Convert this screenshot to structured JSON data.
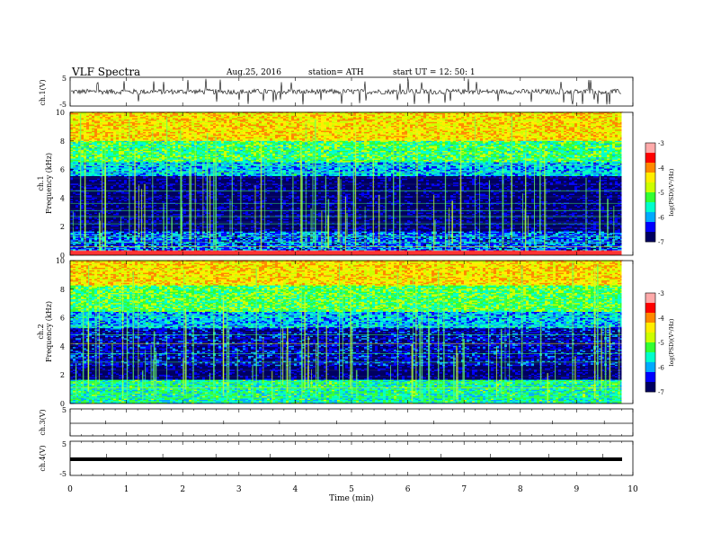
{
  "header": {
    "title": "VLF  Spectra",
    "date": "Aug.25, 2016",
    "station": "station= ATH",
    "start": "start  UT  =    12: 50: 1"
  },
  "chart_data": [
    {
      "type": "line",
      "panel": "ch1-waveform",
      "ylabel": "ch.1(V)",
      "ylim": [
        -5,
        5
      ],
      "yticks": [
        "5",
        "-5"
      ],
      "baseline": 0,
      "x_range_min": [
        0,
        9.8
      ],
      "description_values": {
        "typical_amplitude_V": 1.5,
        "spike_amplitude_V": 4.5
      }
    },
    {
      "type": "heatmap",
      "panel": "ch1-spectrogram",
      "ylabel": "ch.1",
      "ylabel2": "Frequency  (kHz)",
      "ylim": [
        0,
        10
      ],
      "yticks": [
        "0",
        "2",
        "4",
        "6",
        "8",
        "10"
      ],
      "xlim": [
        0,
        9.8
      ],
      "colorbar": {
        "label": "log(PSD)(V²/Hz)",
        "ticks": [
          "-3",
          "-4",
          "-5",
          "-6",
          "-7"
        ],
        "range": [
          -7,
          -3
        ]
      },
      "bands_kHz_logPSD": [
        {
          "from": 0,
          "to": 0.3,
          "value": -3.2
        },
        {
          "from": 0.3,
          "to": 1.6,
          "value": -6.2
        },
        {
          "from": 1.6,
          "to": 5.5,
          "value": -6.9
        },
        {
          "from": 5.5,
          "to": 6.5,
          "value": -5.9
        },
        {
          "from": 6.5,
          "to": 8.0,
          "value": -5.3
        },
        {
          "from": 8.0,
          "to": 10.0,
          "value": -4.4
        }
      ]
    },
    {
      "type": "heatmap",
      "panel": "ch2-spectrogram",
      "ylabel": "ch.2",
      "ylabel2": "Frequency  (kHz)",
      "ylim": [
        0,
        10
      ],
      "yticks": [
        "0",
        "2",
        "4",
        "6",
        "8",
        "10"
      ],
      "xlim": [
        0,
        9.8
      ],
      "colorbar": {
        "label": "log(PSD)(V²/Hz)",
        "ticks": [
          "-3",
          "-4",
          "-5",
          "-6",
          "-7"
        ],
        "range": [
          -7,
          -3
        ]
      },
      "bands_kHz_logPSD": [
        {
          "from": 0,
          "to": 1.6,
          "value": -5.5
        },
        {
          "from": 1.6,
          "to": 2.6,
          "value": -6.9
        },
        {
          "from": 2.6,
          "to": 5.2,
          "value": -6.6
        },
        {
          "from": 5.2,
          "to": 6.4,
          "value": -5.9
        },
        {
          "from": 6.4,
          "to": 8.2,
          "value": -5.2
        },
        {
          "from": 8.2,
          "to": 10.0,
          "value": -4.4
        }
      ]
    },
    {
      "type": "line",
      "panel": "ch3-waveform",
      "ylabel": "ch.3(V)",
      "ylim": [
        -5,
        5
      ],
      "yticks": [
        "5"
      ],
      "baseline": 0
    },
    {
      "type": "line",
      "panel": "ch4-waveform",
      "ylabel": "ch.4(V)",
      "ylim": [
        -5,
        5
      ],
      "yticks": [
        "5",
        "-5"
      ],
      "baseline": 0
    }
  ],
  "xaxis": {
    "label": "Time  (min)",
    "ticks": [
      "0",
      "1",
      "2",
      "3",
      "4",
      "5",
      "6",
      "7",
      "8",
      "9",
      "10"
    ],
    "range": [
      0,
      10
    ]
  },
  "colors": {
    "scale": [
      "#000060",
      "#0000ff",
      "#00aaff",
      "#00ffcc",
      "#33ff33",
      "#ccff00",
      "#ffee00",
      "#ff8800",
      "#ff0000",
      "#ffaaaa"
    ]
  }
}
